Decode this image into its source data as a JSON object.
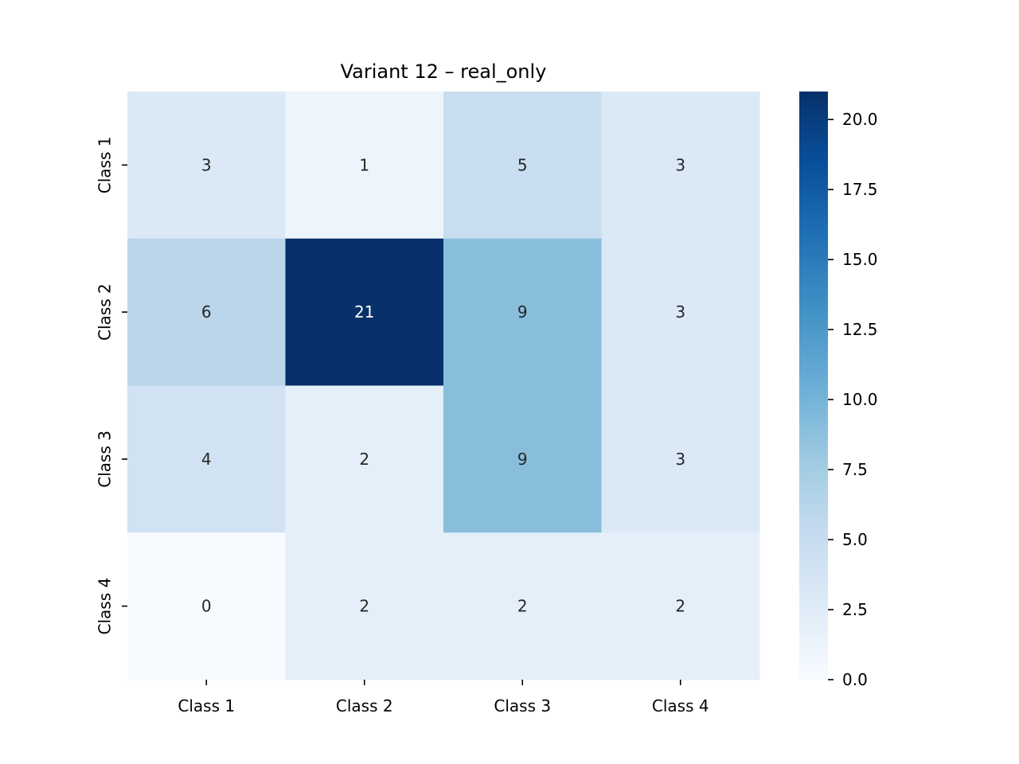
{
  "chart_data": {
    "type": "heatmap",
    "title": "Variant 12 – real_only",
    "xlabel": "",
    "ylabel": "",
    "x_categories": [
      "Class 1",
      "Class 2",
      "Class 3",
      "Class 4"
    ],
    "y_categories": [
      "Class 1",
      "Class 2",
      "Class 3",
      "Class 4"
    ],
    "values": [
      [
        3,
        1,
        5,
        3
      ],
      [
        6,
        21,
        9,
        3
      ],
      [
        4,
        2,
        9,
        3
      ],
      [
        0,
        2,
        2,
        2
      ]
    ],
    "colormap": "Blues",
    "colorbar": {
      "range": [
        0,
        21
      ],
      "ticks": [
        0.0,
        2.5,
        5.0,
        7.5,
        10.0,
        12.5,
        15.0,
        17.5,
        20.0
      ],
      "tick_labels": [
        "0.0",
        "2.5",
        "5.0",
        "7.5",
        "10.0",
        "12.5",
        "15.0",
        "17.5",
        "20.0"
      ]
    },
    "annotations": true,
    "grid": false
  }
}
